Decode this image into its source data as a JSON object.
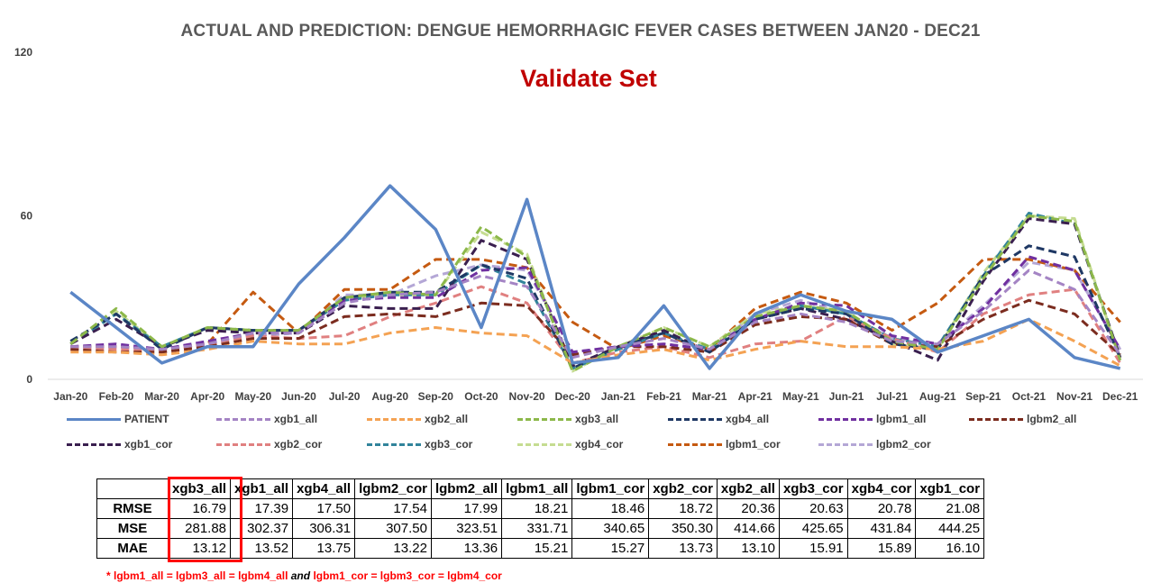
{
  "title": "ACTUAL AND PREDICTION: DENGUE HEMORRHAGIC FEVER CASES BETWEEN JAN20 - DEC21",
  "subtitle": "Validate Set",
  "chart_data": {
    "type": "line",
    "title": "ACTUAL AND PREDICTION: DENGUE HEMORRHAGIC FEVER CASES BETWEEN JAN20 - DEC21",
    "subtitle": "Validate Set",
    "ylim": [
      0,
      120
    ],
    "yticks": [
      "0",
      "60",
      "120"
    ],
    "grid": false,
    "legend_position": "bottom",
    "categories": [
      "Jan-20",
      "Feb-20",
      "Mar-20",
      "Apr-20",
      "May-20",
      "Jun-20",
      "Jul-20",
      "Aug-20",
      "Sep-20",
      "Oct-20",
      "Nov-20",
      "Dec-20",
      "Jan-21",
      "Feb-21",
      "Mar-21",
      "Apr-21",
      "May-21",
      "Jun-21",
      "Jul-21",
      "Aug-21",
      "Sep-21",
      "Oct-21",
      "Nov-21",
      "Dec-21"
    ],
    "series": [
      {
        "name": "PATIENT",
        "color": "#5b86c6",
        "dash": "solid",
        "values": [
          32,
          19,
          6,
          12,
          12,
          35,
          52,
          71,
          55,
          19,
          66,
          6,
          8,
          27,
          4,
          24,
          31,
          25,
          22,
          10,
          16,
          22,
          8,
          4
        ]
      },
      {
        "name": "xgb1_all",
        "color": "#a484c4",
        "dash": "dash",
        "values": [
          12,
          12,
          11,
          13,
          17,
          17,
          28,
          31,
          32,
          38,
          34,
          8,
          12,
          15,
          11,
          21,
          24,
          21,
          14,
          13,
          25,
          40,
          33,
          9
        ]
      },
      {
        "name": "xgb2_all",
        "color": "#f4a253",
        "dash": "dash",
        "values": [
          10,
          10,
          9,
          11,
          14,
          13,
          13,
          17,
          19,
          17,
          16,
          6,
          9,
          11,
          7,
          11,
          14,
          12,
          12,
          11,
          14,
          22,
          14,
          5
        ]
      },
      {
        "name": "xgb3_all",
        "color": "#8cb84a",
        "dash": "dash",
        "values": [
          13,
          26,
          12,
          19,
          18,
          18,
          30,
          32,
          31,
          56,
          45,
          3,
          12,
          19,
          12,
          23,
          27,
          25,
          14,
          11,
          37,
          60,
          58,
          7
        ]
      },
      {
        "name": "xgb4_all",
        "color": "#1f3864",
        "dash": "dash",
        "values": [
          14,
          24,
          11,
          19,
          18,
          18,
          30,
          32,
          32,
          42,
          37,
          4,
          12,
          17,
          10,
          22,
          26,
          24,
          13,
          11,
          38,
          49,
          45,
          8
        ]
      },
      {
        "name": "lgbm1_all",
        "color": "#7030a0",
        "dash": "dash",
        "values": [
          12,
          13,
          11,
          14,
          17,
          18,
          29,
          30,
          30,
          40,
          41,
          10,
          12,
          13,
          11,
          22,
          28,
          27,
          16,
          13,
          26,
          45,
          40,
          11
        ]
      },
      {
        "name": "lgbm2_all",
        "color": "#7b2c1f",
        "dash": "dash",
        "values": [
          11,
          10,
          10,
          12,
          15,
          15,
          23,
          24,
          23,
          28,
          27,
          9,
          12,
          12,
          10,
          20,
          23,
          22,
          13,
          12,
          22,
          29,
          24,
          9
        ]
      },
      {
        "name": "xgb1_cor",
        "color": "#3a1f4f",
        "dash": "dash",
        "values": [
          13,
          22,
          12,
          18,
          17,
          17,
          27,
          26,
          26,
          51,
          44,
          5,
          12,
          18,
          10,
          22,
          26,
          22,
          14,
          7,
          36,
          59,
          57,
          8
        ]
      },
      {
        "name": "xgb2_cor",
        "color": "#e08080",
        "dash": "dash",
        "values": [
          11,
          11,
          10,
          13,
          16,
          15,
          16,
          23,
          28,
          34,
          28,
          6,
          10,
          12,
          8,
          13,
          14,
          23,
          15,
          10,
          24,
          31,
          33,
          6
        ]
      },
      {
        "name": "xgb3_cor",
        "color": "#31849b",
        "dash": "dash",
        "values": [
          13,
          24,
          12,
          19,
          18,
          18,
          29,
          31,
          31,
          42,
          35,
          4,
          11,
          17,
          11,
          22,
          27,
          24,
          15,
          12,
          38,
          61,
          57,
          8
        ]
      },
      {
        "name": "xgb4_cor",
        "color": "#c5dc91",
        "dash": "dash",
        "values": [
          13,
          25,
          12,
          19,
          18,
          18,
          30,
          31,
          31,
          54,
          46,
          3,
          12,
          19,
          12,
          24,
          27,
          25,
          13,
          11,
          39,
          60,
          59,
          7
        ]
      },
      {
        "name": "lgbm1_cor",
        "color": "#c55a11",
        "dash": "dash",
        "values": [
          12,
          12,
          11,
          13,
          32,
          17,
          33,
          33,
          44,
          44,
          41,
          21,
          11,
          16,
          11,
          26,
          32,
          28,
          18,
          28,
          44,
          44,
          40,
          21
        ]
      },
      {
        "name": "lgbm2_cor",
        "color": "#b4a7d6",
        "dash": "dash",
        "values": [
          11,
          12,
          11,
          14,
          16,
          17,
          31,
          31,
          38,
          42,
          40,
          10,
          12,
          13,
          11,
          24,
          29,
          24,
          15,
          13,
          27,
          43,
          40,
          11
        ]
      }
    ]
  },
  "metrics_table": {
    "headers": [
      "",
      "xgb3_all",
      "xgb1_all",
      "xgb4_all",
      "lgbm2_cor",
      "lgbm2_all",
      "lgbm1_all",
      "lgbm1_cor",
      "xgb2_cor",
      "xgb2_all",
      "xgb3_cor",
      "xgb4_cor",
      "xgb1_cor"
    ],
    "rows": [
      {
        "label": "RMSE",
        "values": [
          "16.79",
          "17.39",
          "17.50",
          "17.54",
          "17.99",
          "18.21",
          "18.46",
          "18.72",
          "20.36",
          "20.63",
          "20.78",
          "21.08"
        ]
      },
      {
        "label": "MSE",
        "values": [
          "281.88",
          "302.37",
          "306.31",
          "307.50",
          "323.51",
          "331.71",
          "340.65",
          "350.30",
          "414.66",
          "425.65",
          "431.84",
          "444.25"
        ]
      },
      {
        "label": "MAE",
        "values": [
          "13.12",
          "13.52",
          "13.75",
          "13.22",
          "13.36",
          "15.21",
          "15.27",
          "13.73",
          "13.10",
          "15.91",
          "15.89",
          "16.10"
        ]
      }
    ],
    "highlight_color": "#ff0000"
  },
  "footnote": {
    "part1": "* lgbm1_all = lgbm3_all = lgbm4_all",
    "part2": " and ",
    "part3": "lgbm1_cor = lgbm3_cor = lgbm4_cor"
  }
}
